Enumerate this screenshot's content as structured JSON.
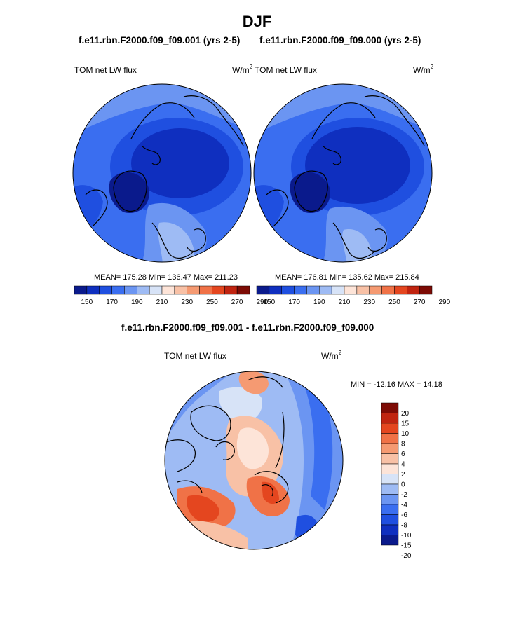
{
  "figure": {
    "title": "DJF",
    "top_left_title": "f.e11.rbn.F2000.f09_f09.001 (yrs 2-5)",
    "top_right_title": "f.e11.rbn.F2000.f09_f09.000 (yrs 2-5)",
    "bottom_title": "f.e11.rbn.F2000.f09_f09.001 - f.e11.rbn.F2000.f09_f09.000"
  },
  "colors": {
    "abs_scale": [
      "#0a1a8c",
      "#0f2fbf",
      "#1f4fe0",
      "#3a6ef0",
      "#6b95f2",
      "#9ebbf4",
      "#d7e3f7",
      "#fde4d8",
      "#f8c1a6",
      "#f59a72",
      "#f07247",
      "#e4461f",
      "#c02410",
      "#7d0b05"
    ],
    "diff_scale": [
      "#0a1a8c",
      "#0f2fbf",
      "#1f4fe0",
      "#3a6ef0",
      "#6b95f2",
      "#9ebbf4",
      "#d7e3f7",
      "#fde4d8",
      "#f8c1a6",
      "#f59a72",
      "#f07247",
      "#e4461f",
      "#c02410",
      "#7d0b05"
    ]
  },
  "chart_data": [
    {
      "type": "heatmap",
      "projection": "north-polar-stereographic",
      "title": "f.e11.rbn.F2000.f09_f09.001 (yrs 2-5)",
      "left_label": "TOM net LW flux",
      "right_label": "W/m",
      "right_label_sup": "2",
      "stats": {
        "mean": 175.28,
        "min": 136.47,
        "max": 211.23
      },
      "stats_text": "MEAN= 175.28  Min= 136.47  Max= 211.23",
      "colorbar": {
        "orientation": "horizontal",
        "levels": [
          150,
          160,
          170,
          180,
          190,
          200,
          210,
          220,
          230,
          240,
          250,
          260,
          270,
          280,
          290
        ],
        "tick_labels": [
          "150",
          "170",
          "190",
          "210",
          "230",
          "250",
          "270",
          "290"
        ]
      }
    },
    {
      "type": "heatmap",
      "projection": "north-polar-stereographic",
      "title": "f.e11.rbn.F2000.f09_f09.000 (yrs 2-5)",
      "left_label": "TOM net LW flux",
      "right_label": "W/m",
      "right_label_sup": "2",
      "stats": {
        "mean": 176.81,
        "min": 135.62,
        "max": 215.84
      },
      "stats_text": "MEAN= 176.81  Min= 135.62  Max= 215.84",
      "colorbar": {
        "orientation": "horizontal",
        "levels": [
          150,
          160,
          170,
          180,
          190,
          200,
          210,
          220,
          230,
          240,
          250,
          260,
          270,
          280,
          290
        ],
        "tick_labels": [
          "150",
          "170",
          "190",
          "210",
          "230",
          "250",
          "270",
          "290"
        ]
      }
    },
    {
      "type": "heatmap",
      "projection": "north-polar-stereographic",
      "title": "f.e11.rbn.F2000.f09_f09.001 - f.e11.rbn.F2000.f09_f09.000",
      "left_label": "TOM net LW flux",
      "right_label": "W/m",
      "right_label_sup": "2",
      "stats": {
        "min": -12.16,
        "max": 14.18
      },
      "stats_text": "MIN = -12.16 MAX =  14.18",
      "colorbar": {
        "orientation": "vertical",
        "tick_labels": [
          "20",
          "15",
          "10",
          "8",
          "6",
          "4",
          "2",
          "0",
          "-2",
          "-4",
          "-6",
          "-8",
          "-10",
          "-15",
          "-20"
        ]
      }
    }
  ]
}
